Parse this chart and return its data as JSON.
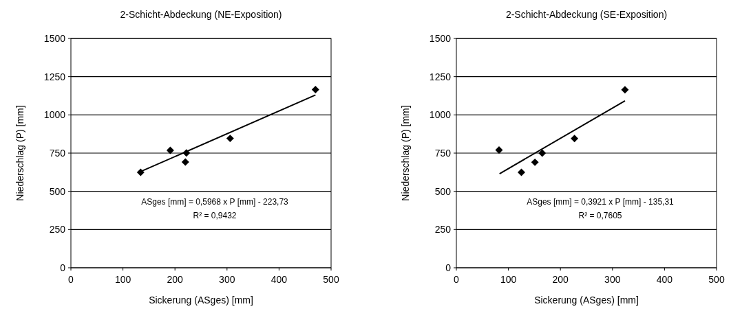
{
  "chart_data": [
    {
      "type": "scatter",
      "title": "2-Schicht-Abdeckung (NE-Exposition)",
      "xlabel": "Sickerung (ASges) [mm]",
      "ylabel": "Niederschlag (P) [mm]",
      "xlim": [
        0,
        500
      ],
      "ylim": [
        0,
        1500
      ],
      "xticks": [
        0,
        100,
        200,
        300,
        400,
        500
      ],
      "yticks": [
        0,
        250,
        500,
        750,
        1000,
        1250,
        1500
      ],
      "grid": "y",
      "series": [
        {
          "color": "#000000",
          "marker": "diamond",
          "x": [
            134,
            191,
            222,
            220,
            306,
            470
          ],
          "values": [
            624,
            768,
            751,
            692,
            846,
            1165
          ]
        },
        {
          "type": "line",
          "color": "#000000",
          "x": [
            134,
            470
          ],
          "values": [
            629,
            1130
          ]
        }
      ],
      "annotations": [
        "ASges [mm]  = 0,5968 x P [mm] - 223,73",
        "R² = 0,9432"
      ]
    },
    {
      "type": "scatter",
      "title": "2-Schicht-Abdeckung (SE-Exposition)",
      "xlabel": "Sickerung (ASges) [mm]",
      "ylabel": "Niederschlag (P) [mm]",
      "xlim": [
        0,
        500
      ],
      "ylim": [
        0,
        1500
      ],
      "xticks": [
        0,
        100,
        200,
        300,
        400,
        500
      ],
      "yticks": [
        0,
        250,
        500,
        750,
        1000,
        1250,
        1500
      ],
      "grid": "y",
      "series": [
        {
          "color": "#000000",
          "marker": "diamond",
          "x": [
            82,
            125,
            151,
            165,
            227,
            324
          ],
          "values": [
            770,
            624,
            690,
            750,
            845,
            1164
          ]
        },
        {
          "type": "line",
          "color": "#000000",
          "x": [
            83,
            324
          ],
          "values": [
            615,
            1092
          ]
        }
      ],
      "annotations": [
        "ASges [mm]  = 0,3921 x P [mm] - 135,31",
        "R² = 0,7605"
      ]
    }
  ]
}
